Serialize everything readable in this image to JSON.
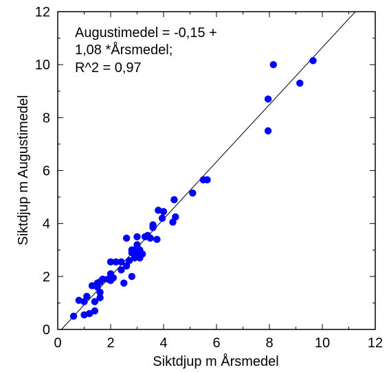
{
  "chart_data": {
    "type": "scatter",
    "xlabel": "Siktdjup m Årsmedel",
    "ylabel": "Siktdjup m Augustimedel",
    "xlim": [
      0,
      12
    ],
    "ylim": [
      0,
      12
    ],
    "xticks": [
      "0",
      "2",
      "4",
      "6",
      "8",
      "10",
      "12"
    ],
    "yticks": [
      "0",
      "2",
      "4",
      "6",
      "8",
      "10",
      "12"
    ],
    "grid": false,
    "annotation": [
      "Augustimedel = -0,15 +",
      "1,08 *Årsmedel;",
      "R^2 = 0,97"
    ],
    "regression": {
      "intercept": -0.15,
      "slope": 1.08
    },
    "point_color": "#0000ff",
    "points": [
      [
        0.6,
        0.5
      ],
      [
        0.8,
        1.1
      ],
      [
        1.0,
        1.05
      ],
      [
        1.0,
        0.55
      ],
      [
        1.1,
        1.25
      ],
      [
        1.2,
        0.6
      ],
      [
        1.3,
        1.65
      ],
      [
        1.4,
        0.7
      ],
      [
        1.4,
        1.05
      ],
      [
        1.5,
        1.6
      ],
      [
        1.5,
        1.75
      ],
      [
        1.6,
        1.2
      ],
      [
        1.6,
        1.4
      ],
      [
        1.6,
        1.8
      ],
      [
        1.7,
        1.9
      ],
      [
        1.9,
        1.9
      ],
      [
        2.0,
        1.85
      ],
      [
        2.0,
        2.1
      ],
      [
        2.0,
        2.55
      ],
      [
        2.1,
        1.95
      ],
      [
        2.2,
        2.55
      ],
      [
        2.4,
        2.55
      ],
      [
        2.4,
        2.25
      ],
      [
        2.5,
        1.75
      ],
      [
        2.6,
        2.4
      ],
      [
        2.6,
        3.45
      ],
      [
        2.7,
        2.6
      ],
      [
        2.8,
        2.0
      ],
      [
        2.8,
        2.9
      ],
      [
        2.8,
        3.0
      ],
      [
        2.9,
        2.7
      ],
      [
        2.9,
        3.0
      ],
      [
        3.0,
        3.2
      ],
      [
        3.0,
        2.8
      ],
      [
        3.0,
        3.5
      ],
      [
        3.1,
        2.7
      ],
      [
        3.1,
        3.0
      ],
      [
        3.2,
        2.85
      ],
      [
        3.3,
        3.5
      ],
      [
        3.4,
        3.55
      ],
      [
        3.5,
        3.45
      ],
      [
        3.6,
        3.95
      ],
      [
        3.6,
        3.85
      ],
      [
        3.75,
        3.4
      ],
      [
        3.8,
        4.5
      ],
      [
        3.95,
        4.2
      ],
      [
        4.0,
        4.45
      ],
      [
        4.35,
        4.05
      ],
      [
        4.4,
        4.9
      ],
      [
        4.45,
        4.25
      ],
      [
        5.1,
        5.15
      ],
      [
        5.5,
        5.65
      ],
      [
        5.65,
        5.65
      ],
      [
        7.95,
        8.7
      ],
      [
        7.95,
        7.5
      ],
      [
        8.15,
        10.0
      ],
      [
        9.15,
        9.3
      ],
      [
        9.65,
        10.15
      ]
    ]
  }
}
